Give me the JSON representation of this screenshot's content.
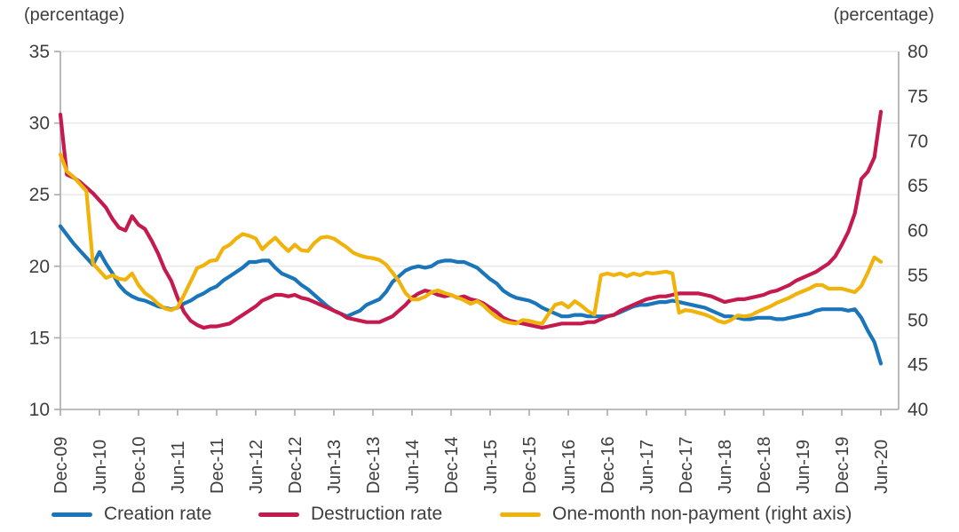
{
  "axes_units": {
    "left": "(percentage)",
    "right": "(percentage)"
  },
  "chart_data": {
    "type": "line",
    "title": "",
    "x_start": "Dec-09",
    "x_end": "Jun-20",
    "x_frequency": "monthly",
    "x_tick_labels": [
      "Dec-09",
      "Jun-10",
      "Dec-10",
      "Jun-11",
      "Dec-11",
      "Jun-12",
      "Dec-12",
      "Jun-13",
      "Dec-13",
      "Jun-14",
      "Dec-14",
      "Jun-15",
      "Dec-15",
      "Jun-16",
      "Dec-16",
      "Jun-17",
      "Dec-17",
      "Jun-18",
      "Dec-18",
      "Jun-19",
      "Dec-19",
      "Jun-20"
    ],
    "left_axis": {
      "label": "(percentage)",
      "min": 10,
      "max": 35,
      "ticks": [
        35,
        30,
        25,
        20,
        15,
        10
      ]
    },
    "right_axis": {
      "label": "(percentage)",
      "min": 40,
      "max": 80,
      "ticks": [
        80,
        75,
        70,
        65,
        60,
        55,
        50,
        45,
        40
      ]
    },
    "grid": true,
    "legend_position": "bottom",
    "series": [
      {
        "name": "Creation rate",
        "axis": "left",
        "color": "#1a75ba",
        "values": [
          22.8,
          22.2,
          21.6,
          21.1,
          20.6,
          20.1,
          21.0,
          20.2,
          19.5,
          18.7,
          18.2,
          17.9,
          17.7,
          17.6,
          17.4,
          17.2,
          17.1,
          17.0,
          17.1,
          17.4,
          17.6,
          17.9,
          18.1,
          18.4,
          18.6,
          19.0,
          19.3,
          19.6,
          19.9,
          20.3,
          20.3,
          20.4,
          20.4,
          19.9,
          19.5,
          19.3,
          19.1,
          18.7,
          18.4,
          18.0,
          17.6,
          17.2,
          16.9,
          16.7,
          16.5,
          16.7,
          16.9,
          17.3,
          17.5,
          17.7,
          18.2,
          18.9,
          19.3,
          19.7,
          19.9,
          20.0,
          19.9,
          20.0,
          20.3,
          20.4,
          20.4,
          20.3,
          20.3,
          20.1,
          19.9,
          19.5,
          19.1,
          18.8,
          18.3,
          18.0,
          17.8,
          17.7,
          17.6,
          17.4,
          17.1,
          16.9,
          16.7,
          16.5,
          16.5,
          16.6,
          16.6,
          16.5,
          16.5,
          16.5,
          16.5,
          16.6,
          16.8,
          17.0,
          17.2,
          17.3,
          17.3,
          17.4,
          17.5,
          17.5,
          17.6,
          17.5,
          17.4,
          17.3,
          17.2,
          17.1,
          16.9,
          16.7,
          16.5,
          16.5,
          16.4,
          16.3,
          16.3,
          16.4,
          16.4,
          16.4,
          16.3,
          16.3,
          16.4,
          16.5,
          16.6,
          16.7,
          16.9,
          17.0,
          17.0,
          17.0,
          17.0,
          16.9,
          17.0,
          16.4,
          15.5,
          14.7,
          13.2
        ]
      },
      {
        "name": "Destruction rate",
        "axis": "left",
        "color": "#c51a4d",
        "values": [
          30.6,
          26.4,
          26.2,
          25.9,
          25.5,
          25.1,
          24.6,
          24.1,
          23.3,
          22.7,
          22.5,
          23.5,
          22.9,
          22.6,
          21.8,
          20.9,
          19.8,
          19.0,
          17.8,
          16.8,
          16.2,
          15.9,
          15.7,
          15.8,
          15.8,
          15.9,
          16.0,
          16.3,
          16.6,
          16.9,
          17.2,
          17.6,
          17.8,
          18.0,
          18.0,
          17.9,
          18.0,
          17.8,
          17.7,
          17.5,
          17.3,
          17.1,
          16.9,
          16.7,
          16.4,
          16.3,
          16.2,
          16.1,
          16.1,
          16.1,
          16.3,
          16.5,
          16.9,
          17.3,
          17.8,
          18.1,
          18.3,
          18.2,
          18.0,
          17.9,
          18.0,
          17.8,
          17.9,
          17.7,
          17.6,
          17.4,
          17.1,
          16.8,
          16.4,
          16.2,
          16.1,
          16.0,
          15.9,
          15.8,
          15.7,
          15.8,
          15.9,
          16.0,
          16.0,
          16.0,
          16.0,
          16.1,
          16.1,
          16.3,
          16.5,
          16.6,
          16.9,
          17.1,
          17.3,
          17.5,
          17.7,
          17.8,
          17.9,
          17.9,
          18.0,
          18.1,
          18.1,
          18.1,
          18.1,
          18.0,
          17.9,
          17.7,
          17.5,
          17.6,
          17.7,
          17.7,
          17.8,
          17.9,
          18.0,
          18.2,
          18.3,
          18.5,
          18.7,
          19.0,
          19.2,
          19.4,
          19.6,
          19.9,
          20.2,
          20.7,
          21.5,
          22.4,
          23.7,
          26.1,
          26.6,
          27.6,
          30.8
        ]
      },
      {
        "name": "One-month non-payment (right axis)",
        "axis": "right",
        "color": "#f0b30c",
        "values": [
          68.5,
          66.6,
          66.0,
          65.2,
          64.4,
          56.3,
          55.5,
          54.7,
          55.0,
          54.6,
          54.5,
          55.2,
          53.9,
          53.0,
          52.5,
          51.8,
          51.3,
          51.1,
          51.4,
          52.8,
          54.3,
          55.8,
          56.1,
          56.6,
          56.7,
          58.0,
          58.4,
          59.1,
          59.6,
          59.4,
          59.1,
          57.9,
          58.6,
          59.2,
          58.4,
          57.7,
          58.4,
          57.8,
          57.7,
          58.6,
          59.2,
          59.3,
          59.1,
          58.6,
          58.1,
          57.5,
          57.2,
          57.0,
          56.9,
          56.7,
          56.2,
          55.3,
          54.3,
          53.0,
          52.3,
          52.3,
          52.6,
          53.1,
          53.3,
          53.0,
          52.8,
          52.5,
          52.2,
          51.8,
          52.1,
          51.6,
          50.9,
          50.3,
          49.9,
          49.7,
          49.6,
          50.0,
          49.9,
          49.7,
          49.6,
          50.7,
          51.7,
          51.9,
          51.4,
          52.1,
          51.6,
          51.0,
          50.6,
          55.0,
          55.2,
          55.0,
          55.2,
          54.9,
          55.2,
          55.0,
          55.3,
          55.2,
          55.3,
          55.4,
          55.2,
          50.8,
          51.1,
          51.0,
          50.8,
          50.6,
          50.3,
          49.9,
          49.7,
          50.0,
          50.5,
          50.4,
          50.5,
          50.9,
          51.2,
          51.5,
          51.9,
          52.2,
          52.5,
          52.9,
          53.2,
          53.5,
          53.9,
          53.9,
          53.5,
          53.5,
          53.5,
          53.3,
          53.1,
          53.8,
          55.3,
          57.0,
          56.5
        ]
      }
    ]
  }
}
